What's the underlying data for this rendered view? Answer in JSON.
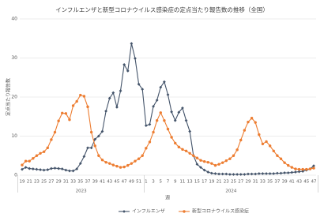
{
  "chart_data": {
    "type": "line",
    "title": "インフルエンザと新型コロナウイルス感染症の定点当たり報告数の推移（全国）",
    "y_label": "定点当たり報告数",
    "x_label": "週",
    "year_labels": [
      "2023",
      "2024"
    ],
    "categories": [
      "19",
      null,
      "21",
      null,
      "23",
      null,
      "25",
      null,
      "27",
      null,
      "29",
      null,
      "31",
      null,
      "33",
      null,
      "35",
      null,
      "37",
      null,
      "39",
      null,
      "41",
      null,
      "43",
      null,
      "45",
      null,
      "47",
      null,
      "49",
      null,
      "51",
      null,
      "1",
      null,
      "3",
      null,
      "5",
      null,
      "7",
      null,
      "9",
      null,
      "11",
      null,
      "13",
      null,
      "15",
      null,
      "17",
      null,
      "19",
      null,
      "21",
      null,
      "23",
      null,
      "25",
      null,
      "27",
      null,
      "29",
      null,
      "31",
      null,
      "33",
      null,
      "35",
      null,
      "37",
      null,
      "39",
      null,
      "41",
      null,
      "43",
      null,
      "45",
      null,
      "47"
    ],
    "series": [
      {
        "name": "インフルエンザ",
        "color": "#44546a",
        "marker": "diamond",
        "values": [
          1.5,
          2.0,
          1.7,
          1.6,
          1.5,
          1.4,
          1.3,
          1.4,
          1.7,
          1.8,
          1.7,
          1.6,
          1.3,
          1.1,
          1.1,
          1.6,
          3.0,
          4.8,
          7.0,
          7.0,
          9.2,
          10.0,
          11.2,
          16.4,
          19.7,
          21.1,
          17.4,
          21.6,
          28.3,
          26.7,
          33.7,
          29.9,
          23.3,
          22.0,
          12.7,
          13.0,
          17.6,
          19.2,
          22.5,
          23.9,
          20.6,
          16.2,
          14.0,
          16.1,
          17.2,
          14.0,
          11.2,
          5.0,
          2.8,
          2.0,
          1.3,
          0.8,
          0.5,
          0.4,
          0.3,
          0.3,
          0.3,
          0.2,
          0.2,
          0.2,
          0.2,
          0.2,
          0.3,
          0.3,
          0.3,
          0.4,
          0.4,
          0.4,
          0.4,
          0.4,
          0.5,
          0.5,
          0.6,
          0.6,
          0.7,
          0.8,
          0.9,
          1.0,
          1.3,
          1.6,
          2.4
        ]
      },
      {
        "name": "新型コロナウイルス感染症",
        "color": "#ed7d31",
        "marker": "circle",
        "values": [
          2.6,
          3.6,
          3.6,
          4.3,
          5.0,
          5.6,
          6.0,
          7.0,
          9.1,
          11.0,
          13.9,
          15.9,
          15.8,
          14.2,
          17.8,
          18.9,
          20.5,
          20.2,
          17.5,
          11.0,
          7.5,
          5.0,
          3.9,
          3.3,
          3.0,
          2.6,
          2.3,
          2.0,
          2.1,
          2.5,
          3.0,
          3.6,
          4.2,
          5.0,
          6.9,
          8.5,
          11.0,
          14.0,
          16.0,
          14.0,
          11.8,
          9.7,
          8.2,
          7.2,
          6.6,
          6.2,
          5.6,
          5.0,
          4.4,
          3.8,
          3.5,
          3.3,
          3.0,
          2.5,
          2.8,
          3.2,
          3.7,
          4.2,
          5.0,
          6.5,
          9.0,
          11.5,
          13.6,
          14.6,
          13.5,
          10.4,
          8.0,
          8.6,
          7.5,
          6.2,
          5.0,
          4.2,
          3.2,
          2.5,
          2.0,
          1.6,
          1.5,
          1.5,
          1.5,
          1.6,
          1.8
        ]
      }
    ],
    "ylim": [
      0,
      40
    ],
    "yticks": [
      0,
      10,
      20,
      30,
      40
    ],
    "grid": true,
    "legend": "bottom"
  }
}
